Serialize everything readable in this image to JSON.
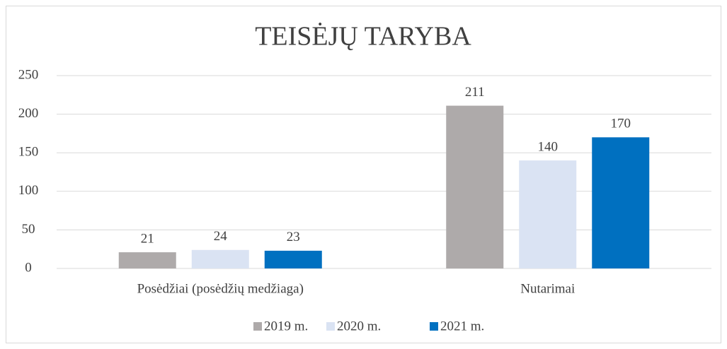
{
  "chart_data": {
    "type": "bar",
    "title": "TEISĖJŲ TARYBA",
    "categories": [
      "Posėdžiai (posėdžių medžiaga)",
      "Nutarimai"
    ],
    "series": [
      {
        "name": "2019 m.",
        "color": "#aeaaaa",
        "values": [
          21,
          211
        ]
      },
      {
        "name": "2020 m.",
        "color": "#dae3f3",
        "values": [
          24,
          140
        ]
      },
      {
        "name": "2021 m.",
        "color": "#0070c0",
        "values": [
          23,
          170
        ]
      }
    ],
    "ylim": [
      0,
      250
    ],
    "yticks": [
      0,
      50,
      100,
      150,
      200,
      250
    ],
    "grid": true,
    "legend": "bottom"
  }
}
